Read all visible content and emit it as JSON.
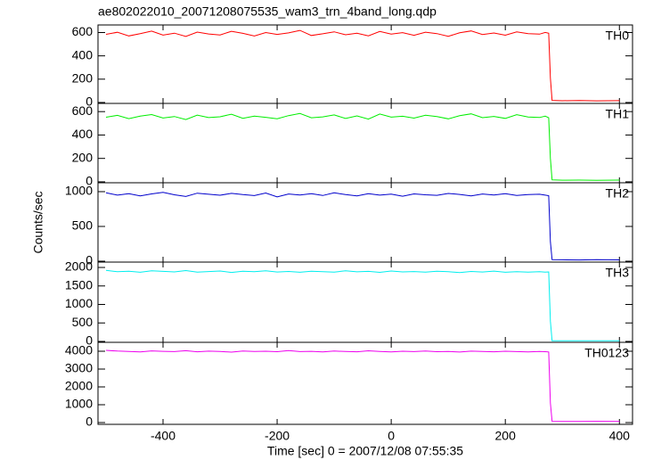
{
  "chart_data": [
    {
      "type": "line",
      "title": "ae802022010_20071208075535_wam3_trn_4band_long.qdp",
      "x": [
        -500,
        -480,
        -460,
        -440,
        -420,
        -400,
        -380,
        -360,
        -340,
        -320,
        -300,
        -280,
        -260,
        -240,
        -220,
        -200,
        -180,
        -160,
        -140,
        -120,
        -100,
        -80,
        -60,
        -40,
        -20,
        0,
        20,
        40,
        60,
        80,
        100,
        120,
        140,
        160,
        180,
        200,
        220,
        240,
        260,
        270,
        276,
        279,
        282,
        300,
        330,
        360,
        400
      ],
      "xlim": [
        -514,
        423
      ],
      "series": [
        {
          "name": "TH0",
          "color": "#ff0000",
          "values": [
            585,
            602,
            571,
            590,
            612,
            578,
            595,
            566,
            604,
            588,
            579,
            611,
            593,
            570,
            600,
            584,
            597,
            618,
            575,
            589,
            606,
            581,
            594,
            572,
            609,
            587,
            599,
            576,
            603,
            591,
            568,
            598,
            614,
            583,
            596,
            577,
            605,
            590,
            586,
            601,
            594,
            210,
            18,
            15,
            17,
            14,
            16
          ]
        }
      ],
      "ylim": [
        -8,
        665
      ],
      "yticks": [
        0,
        200,
        400,
        600
      ]
    },
    {
      "type": "line",
      "x": [
        -500,
        -480,
        -460,
        -440,
        -420,
        -400,
        -380,
        -360,
        -340,
        -320,
        -300,
        -280,
        -260,
        -240,
        -220,
        -200,
        -180,
        -160,
        -140,
        -120,
        -100,
        -80,
        -60,
        -40,
        -20,
        0,
        20,
        40,
        60,
        80,
        100,
        120,
        140,
        160,
        180,
        200,
        220,
        240,
        260,
        270,
        276,
        279,
        282,
        300,
        330,
        360,
        400
      ],
      "xlim": [
        -514,
        423
      ],
      "series": [
        {
          "name": "TH1",
          "color": "#00ee00",
          "values": [
            552,
            568,
            540,
            561,
            575,
            545,
            558,
            532,
            570,
            549,
            556,
            578,
            543,
            562,
            551,
            539,
            566,
            584,
            547,
            555,
            572,
            541,
            563,
            536,
            579,
            553,
            560,
            544,
            569,
            557,
            538,
            565,
            581,
            548,
            559,
            542,
            574,
            554,
            550,
            561,
            547,
            200,
            16,
            14,
            15,
            13,
            15
          ]
        }
      ],
      "ylim": [
        -8,
        670
      ],
      "yticks": [
        0,
        200,
        400,
        600
      ]
    },
    {
      "type": "line",
      "ylabel": "Counts/sec",
      "x": [
        -500,
        -480,
        -460,
        -440,
        -420,
        -400,
        -380,
        -360,
        -340,
        -320,
        -300,
        -280,
        -260,
        -240,
        -220,
        -200,
        -180,
        -160,
        -140,
        -120,
        -100,
        -80,
        -60,
        -40,
        -20,
        0,
        20,
        40,
        60,
        80,
        100,
        120,
        140,
        160,
        180,
        200,
        220,
        240,
        260,
        270,
        276,
        279,
        282,
        300,
        330,
        360,
        400
      ],
      "xlim": [
        -514,
        423
      ],
      "series": [
        {
          "name": "TH2",
          "color": "#0000cc",
          "values": [
            985,
            950,
            972,
            940,
            968,
            990,
            955,
            930,
            978,
            962,
            948,
            975,
            958,
            944,
            980,
            925,
            966,
            952,
            970,
            945,
            983,
            958,
            940,
            972,
            950,
            965,
            935,
            968,
            955,
            947,
            974,
            960,
            938,
            966,
            952,
            971,
            945,
            958,
            963,
            950,
            942,
            280,
            22,
            20,
            18,
            21,
            19
          ]
        }
      ],
      "ylim": [
        -13,
        1128
      ],
      "yticks": [
        0,
        500,
        1000
      ]
    },
    {
      "type": "line",
      "x": [
        -500,
        -480,
        -460,
        -440,
        -420,
        -400,
        -380,
        -360,
        -340,
        -320,
        -300,
        -280,
        -260,
        -240,
        -220,
        -200,
        -180,
        -160,
        -140,
        -120,
        -100,
        -80,
        -60,
        -40,
        -20,
        0,
        20,
        40,
        60,
        80,
        100,
        120,
        140,
        160,
        180,
        200,
        220,
        240,
        260,
        270,
        276,
        279,
        282,
        300,
        330,
        360,
        400
      ],
      "xlim": [
        -514,
        423
      ],
      "series": [
        {
          "name": "TH3",
          "color": "#00eeee",
          "values": [
            1920,
            1885,
            1900,
            1870,
            1910,
            1895,
            1880,
            1915,
            1875,
            1890,
            1905,
            1865,
            1898,
            1885,
            1912,
            1878,
            1893,
            1870,
            1900,
            1888,
            1875,
            1908,
            1882,
            1895,
            1868,
            1903,
            1880,
            1890,
            1872,
            1898,
            1885,
            1862,
            1893,
            1878,
            1902,
            1870,
            1888,
            1876,
            1884,
            1872,
            1880,
            550,
            20,
            18,
            17,
            19,
            16
          ]
        }
      ],
      "ylim": [
        -24,
        2145
      ],
      "yticks": [
        0,
        500,
        1000,
        1500,
        2000
      ]
    },
    {
      "type": "line",
      "xlabel": "Time [sec] 0 = 2007/12/08 07:55:35",
      "x": [
        -500,
        -480,
        -460,
        -440,
        -420,
        -400,
        -380,
        -360,
        -340,
        -320,
        -300,
        -280,
        -260,
        -240,
        -220,
        -200,
        -180,
        -160,
        -140,
        -120,
        -100,
        -80,
        -60,
        -40,
        -20,
        0,
        20,
        40,
        60,
        80,
        100,
        120,
        140,
        160,
        180,
        200,
        220,
        240,
        260,
        270,
        276,
        279,
        282,
        300,
        330,
        360,
        400
      ],
      "xlim": [
        -514,
        423
      ],
      "xticks": [
        -400,
        -200,
        0,
        200,
        400
      ],
      "series": [
        {
          "name": "TH0123",
          "color": "#ee00ee",
          "values": [
            4050,
            4010,
            3990,
            3960,
            4020,
            3995,
            3980,
            4030,
            3970,
            4005,
            3985,
            3950,
            4015,
            3990,
            4000,
            3975,
            4040,
            3980,
            3995,
            3965,
            4010,
            3985,
            3970,
            4025,
            3990,
            3960,
            4000,
            3980,
            4012,
            3975,
            3990,
            3955,
            4005,
            3985,
            3970,
            4000,
            3978,
            3960,
            3988,
            3975,
            3962,
            1100,
            70,
            65,
            62,
            68,
            60
          ]
        }
      ],
      "ylim": [
        -100,
        4500
      ],
      "yticks": [
        0,
        1000,
        2000,
        3000,
        4000
      ]
    }
  ]
}
